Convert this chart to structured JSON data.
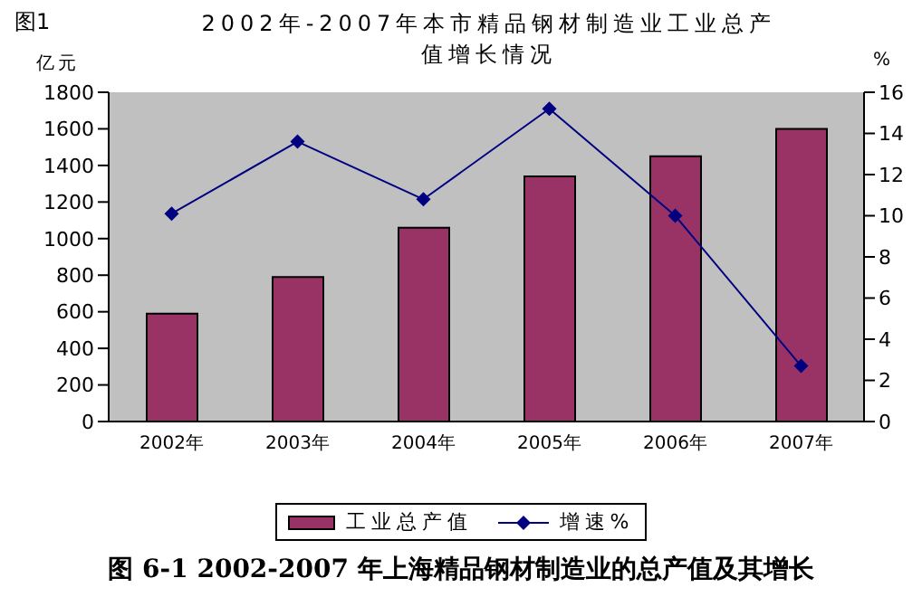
{
  "chart_data": {
    "type": "bar",
    "title": "2002年-2007年本市精品钢材制造业工业总产值增长情况",
    "ylabel": "亿元",
    "y2label": "%",
    "annotations": [
      "图1",
      "图 6-1 2002-2007 年上海精品钢材制造业的总产值及其增长"
    ],
    "categories": [
      "2002年",
      "2003年",
      "2004年",
      "2005年",
      "2006年",
      "2007年"
    ],
    "series": [
      {
        "name": "工业总产值",
        "color": "#993366",
        "values": [
          590,
          790,
          1060,
          1340,
          1450,
          1600
        ]
      },
      {
        "name": "增速%",
        "type": "line",
        "axis": "y2",
        "color": "#000080",
        "marker": "diamond",
        "values": [
          10.1,
          13.6,
          10.8,
          15.2,
          10.0,
          2.7
        ]
      }
    ],
    "ylim": [
      0,
      1800
    ],
    "yticks": [
      0,
      200,
      400,
      600,
      800,
      1000,
      1200,
      1400,
      1600,
      1800
    ],
    "y2lim": [
      0,
      16
    ],
    "y2ticks": [
      0,
      2,
      4,
      6,
      8,
      10,
      12,
      14,
      16
    ],
    "grid": false,
    "legend": "bottom"
  }
}
